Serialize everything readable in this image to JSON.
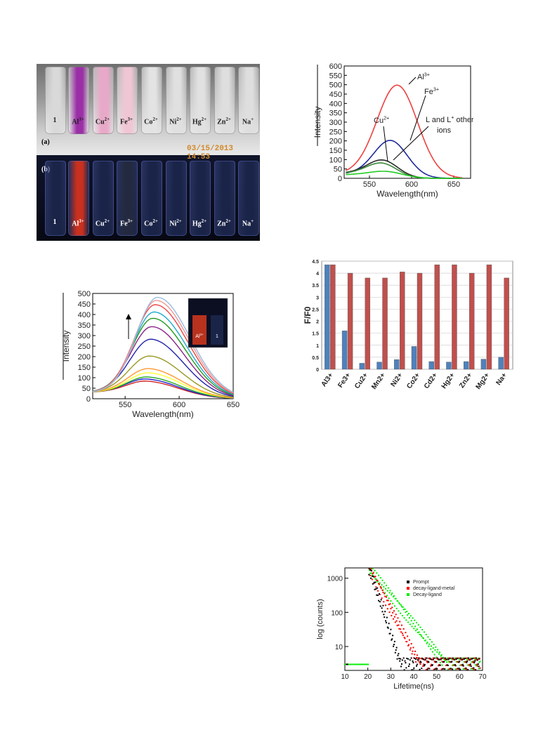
{
  "photo": {
    "panel_a_label": "(a)",
    "panel_b_label": "(b)",
    "timestamp": "03/15/2013  14:53",
    "vial_labels": [
      {
        "base": "1",
        "sup": ""
      },
      {
        "base": "Al",
        "sup": "3+"
      },
      {
        "base": "Cu",
        "sup": "2+"
      },
      {
        "base": "Fe",
        "sup": "3+"
      },
      {
        "base": "Co",
        "sup": "2+"
      },
      {
        "base": "Ni",
        "sup": "2+"
      },
      {
        "base": "Hg",
        "sup": "2+"
      },
      {
        "base": "Zn",
        "sup": "2+"
      },
      {
        "base": "Na",
        "sup": "+"
      }
    ],
    "vial_colors_a": [
      "#d9d9d9",
      "#9b2fa6",
      "#e8a9c8",
      "#f1c6d4",
      "#e3e3e3",
      "#e0e0e0",
      "#e1e1e1",
      "#dedede",
      "#dedede"
    ],
    "vial_colors_b": [
      "#1a2448",
      "#c9301e",
      "#1a2448",
      "#232a40",
      "#1a2448",
      "#1a2448",
      "#1a2448",
      "#1a2448",
      "#1a2448"
    ]
  },
  "chart_data": [
    {
      "type": "line",
      "xlabel": "Wavelength(nm)",
      "ylabel": "Intensity",
      "xlim": [
        520,
        670
      ],
      "ylim": [
        0,
        600
      ],
      "xticks": [
        550,
        600,
        650
      ],
      "yticks": [
        0,
        50,
        100,
        150,
        200,
        250,
        300,
        350,
        400,
        450,
        500,
        550,
        600
      ],
      "annotations": [
        {
          "base": "Al",
          "sup": "3+"
        },
        {
          "base": "Fe",
          "sup": "3+"
        },
        {
          "base": "Cu",
          "sup": "2+"
        },
        {
          "base": "L and L",
          "sup": "+",
          "rest": " other"
        },
        {
          "base": "ions",
          "sup": ""
        }
      ],
      "series": [
        {
          "color": "#ee4040",
          "peak": 583,
          "amp": 495,
          "base": 22,
          "width": 24
        },
        {
          "color": "#1d2a9a",
          "peak": 575,
          "amp": 198,
          "base": 22,
          "width": 20
        },
        {
          "color": "#2a2a2a",
          "peak": 566,
          "amp": 88,
          "base": 28,
          "width": 18
        },
        {
          "color": "#3a8a3a",
          "peak": 565,
          "amp": 72,
          "base": 26,
          "width": 18
        },
        {
          "color": "#22cc22",
          "peak": 570,
          "amp": 32,
          "base": 18,
          "width": 20
        }
      ]
    },
    {
      "type": "line",
      "xlabel": "Wavelength(nm)",
      "ylabel": "Intensity",
      "xlim": [
        520,
        650
      ],
      "ylim": [
        0,
        500
      ],
      "xticks": [
        550,
        600,
        650
      ],
      "yticks": [
        0,
        50,
        100,
        150,
        200,
        250,
        300,
        350,
        400,
        450,
        500
      ],
      "inset_labels": [
        {
          "base": "Al",
          "sup": "3+"
        },
        {
          "base": "1",
          "sup": ""
        }
      ],
      "series": [
        {
          "color": "#cc2222",
          "peak": 570,
          "amp": 80
        },
        {
          "color": "#2222cc",
          "peak": 570,
          "amp": 90
        },
        {
          "color": "#22aa22",
          "peak": 571,
          "amp": 100
        },
        {
          "color": "#ffff33",
          "peak": 572,
          "amp": 120
        },
        {
          "color": "#ff9933",
          "peak": 572,
          "amp": 140
        },
        {
          "color": "#999922",
          "peak": 573,
          "amp": 200
        },
        {
          "color": "#2222aa",
          "peak": 574,
          "amp": 280
        },
        {
          "color": "#882288",
          "peak": 575,
          "amp": 340
        },
        {
          "color": "#229922",
          "peak": 576,
          "amp": 380
        },
        {
          "color": "#22aacc",
          "peak": 577,
          "amp": 410
        },
        {
          "color": "#ee4444",
          "peak": 578,
          "amp": 445
        },
        {
          "color": "#ee9999",
          "peak": 579,
          "amp": 465
        },
        {
          "color": "#99bbdd",
          "peak": 580,
          "amp": 480
        }
      ]
    },
    {
      "type": "bar",
      "ylabel": "F/F0",
      "ylim": [
        0,
        4.5
      ],
      "yticks": [
        "0",
        "0.5",
        "1",
        "1.5",
        "2",
        "2.5",
        "3",
        "3.5",
        "4",
        "4.5"
      ],
      "categories": [
        "Al3+",
        "Fe3+",
        "Cu2+",
        "Mn2+",
        "Ni2+",
        "Co2+",
        "Cd2+",
        "Hg2+",
        "Zn2+",
        "Mg2+",
        "Na+"
      ],
      "series": [
        {
          "color": "#4f81bd",
          "values": [
            4.35,
            1.6,
            0.25,
            0.3,
            0.4,
            0.95,
            0.32,
            0.3,
            0.32,
            0.42,
            0.5
          ]
        },
        {
          "color": "#c0504d",
          "values": [
            4.35,
            4.0,
            3.8,
            3.8,
            4.05,
            4.0,
            4.35,
            4.35,
            4.0,
            4.35,
            3.8
          ]
        }
      ]
    },
    {
      "type": "scatter",
      "xlabel": "Lifetime(ns)",
      "ylabel": "log (counts)",
      "xlim": [
        10,
        70
      ],
      "ylim_log": [
        2,
        2000
      ],
      "xticks": [
        10,
        20,
        30,
        40,
        50,
        60,
        70
      ],
      "yticks": [
        {
          "v": 10,
          "label": "10"
        },
        {
          "v": 100,
          "label": "100"
        },
        {
          "v": 1000,
          "label": "1000"
        }
      ],
      "series": [
        {
          "name": "Prompt",
          "color": "#000000",
          "tau": 2.1,
          "floor": 4
        },
        {
          "name": "decay-ligand-metal",
          "color": "#ff0000",
          "tau": 3.4,
          "floor": 4
        },
        {
          "name": "Decay-ligand",
          "color": "#00ee00",
          "tau": 5.2,
          "floor": 4
        }
      ]
    }
  ]
}
